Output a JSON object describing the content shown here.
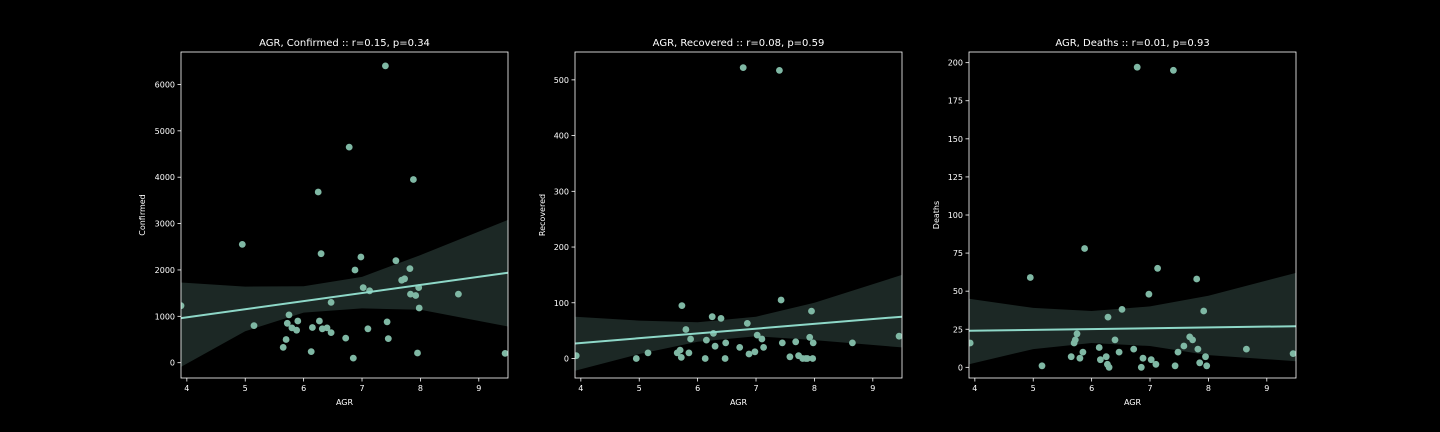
{
  "figure": {
    "background": "#000000",
    "scatter_color": "#7fb8a4",
    "line_color": "#8ed8c8",
    "band_color": "#1c2825"
  },
  "chart_data": [
    {
      "type": "scatter",
      "title": "AGR, Confirmed :: r=0.15, p=0.34",
      "xlabel": "AGR",
      "ylabel": "Confirmed",
      "xlim": [
        3.9,
        9.5
      ],
      "ylim": [
        -330,
        6700
      ],
      "xticks": [
        4,
        5,
        6,
        7,
        8,
        9
      ],
      "yticks": [
        0,
        1000,
        2000,
        3000,
        4000,
        5000,
        6000
      ],
      "points": [
        [
          3.9,
          1230
        ],
        [
          4.95,
          2550
        ],
        [
          5.15,
          800
        ],
        [
          5.65,
          330
        ],
        [
          5.7,
          500
        ],
        [
          5.72,
          850
        ],
        [
          5.75,
          1030
        ],
        [
          5.8,
          750
        ],
        [
          5.88,
          700
        ],
        [
          5.9,
          900
        ],
        [
          6.13,
          240
        ],
        [
          6.15,
          760
        ],
        [
          6.25,
          3680
        ],
        [
          6.27,
          900
        ],
        [
          6.3,
          2350
        ],
        [
          6.32,
          730
        ],
        [
          6.4,
          750
        ],
        [
          6.47,
          650
        ],
        [
          6.47,
          1300
        ],
        [
          6.72,
          530
        ],
        [
          6.78,
          4650
        ],
        [
          6.85,
          100
        ],
        [
          6.88,
          2000
        ],
        [
          6.98,
          2280
        ],
        [
          7.02,
          1620
        ],
        [
          7.1,
          730
        ],
        [
          7.13,
          1550
        ],
        [
          7.4,
          6400
        ],
        [
          7.43,
          880
        ],
        [
          7.45,
          520
        ],
        [
          7.58,
          2200
        ],
        [
          7.68,
          1780
        ],
        [
          7.73,
          1810
        ],
        [
          7.82,
          2030
        ],
        [
          7.83,
          1480
        ],
        [
          7.88,
          3950
        ],
        [
          7.92,
          1450
        ],
        [
          7.95,
          210
        ],
        [
          7.97,
          1620
        ],
        [
          7.98,
          1180
        ],
        [
          8.65,
          1480
        ],
        [
          9.45,
          200
        ]
      ],
      "regression": {
        "x": [
          3.9,
          9.5
        ],
        "y": [
          960,
          1940
        ]
      },
      "ci_band": {
        "x": [
          3.9,
          5.0,
          6.0,
          7.0,
          8.0,
          9.5
        ],
        "upper": [
          1730,
          1640,
          1650,
          1850,
          2320,
          3080
        ],
        "lower": [
          -90,
          680,
          1080,
          1170,
          1140,
          780
        ]
      }
    },
    {
      "type": "scatter",
      "title": "AGR, Recovered :: r=0.08, p=0.59",
      "xlabel": "AGR",
      "ylabel": "Recovered",
      "xlim": [
        3.9,
        9.5
      ],
      "ylim": [
        -35,
        550
      ],
      "xticks": [
        4,
        5,
        6,
        7,
        8,
        9
      ],
      "yticks": [
        0,
        100,
        200,
        300,
        400,
        500
      ],
      "points": [
        [
          3.92,
          5
        ],
        [
          4.95,
          0
        ],
        [
          5.15,
          10
        ],
        [
          5.65,
          10
        ],
        [
          5.7,
          15
        ],
        [
          5.72,
          2
        ],
        [
          5.73,
          95
        ],
        [
          5.8,
          52
        ],
        [
          5.85,
          10
        ],
        [
          5.88,
          35
        ],
        [
          6.13,
          0
        ],
        [
          6.15,
          33
        ],
        [
          6.25,
          75
        ],
        [
          6.27,
          45
        ],
        [
          6.3,
          22
        ],
        [
          6.4,
          72
        ],
        [
          6.47,
          0
        ],
        [
          6.48,
          28
        ],
        [
          6.72,
          20
        ],
        [
          6.78,
          522
        ],
        [
          6.85,
          63
        ],
        [
          6.88,
          8
        ],
        [
          6.98,
          12
        ],
        [
          7.02,
          42
        ],
        [
          7.1,
          35
        ],
        [
          7.13,
          20
        ],
        [
          7.4,
          517
        ],
        [
          7.43,
          105
        ],
        [
          7.45,
          28
        ],
        [
          7.58,
          3
        ],
        [
          7.68,
          30
        ],
        [
          7.73,
          5
        ],
        [
          7.8,
          0
        ],
        [
          7.85,
          0
        ],
        [
          7.88,
          0
        ],
        [
          7.92,
          38
        ],
        [
          7.95,
          85
        ],
        [
          7.97,
          0
        ],
        [
          7.98,
          28
        ],
        [
          8.65,
          28
        ],
        [
          9.45,
          40
        ]
      ],
      "regression": {
        "x": [
          3.9,
          9.5
        ],
        "y": [
          27,
          75
        ]
      },
      "ci_band": {
        "x": [
          3.9,
          5.0,
          6.0,
          7.0,
          8.0,
          9.5
        ],
        "upper": [
          75,
          68,
          65,
          75,
          100,
          150
        ],
        "lower": [
          -22,
          8,
          30,
          40,
          33,
          20
        ]
      }
    },
    {
      "type": "scatter",
      "title": "AGR, Deaths :: r=0.01, p=0.93",
      "xlabel": "AGR",
      "ylabel": "Deaths",
      "xlim": [
        3.9,
        9.5
      ],
      "ylim": [
        -7,
        207
      ],
      "xticks": [
        4,
        5,
        6,
        7,
        8,
        9
      ],
      "yticks": [
        0,
        25,
        50,
        75,
        100,
        125,
        150,
        175,
        200
      ],
      "points": [
        [
          3.92,
          16
        ],
        [
          4.95,
          59
        ],
        [
          5.15,
          1
        ],
        [
          5.65,
          7
        ],
        [
          5.7,
          16
        ],
        [
          5.72,
          18
        ],
        [
          5.75,
          22
        ],
        [
          5.8,
          6
        ],
        [
          5.85,
          10
        ],
        [
          5.88,
          78
        ],
        [
          6.13,
          13
        ],
        [
          6.15,
          5
        ],
        [
          6.25,
          7
        ],
        [
          6.27,
          2
        ],
        [
          6.3,
          0
        ],
        [
          6.28,
          33
        ],
        [
          6.4,
          18
        ],
        [
          6.47,
          10
        ],
        [
          6.52,
          38
        ],
        [
          6.72,
          12
        ],
        [
          6.78,
          197
        ],
        [
          6.85,
          0
        ],
        [
          6.88,
          6
        ],
        [
          6.98,
          48
        ],
        [
          7.02,
          5
        ],
        [
          7.1,
          2
        ],
        [
          7.13,
          65
        ],
        [
          7.4,
          195
        ],
        [
          7.43,
          1
        ],
        [
          7.48,
          10
        ],
        [
          7.58,
          14
        ],
        [
          7.68,
          20
        ],
        [
          7.73,
          18
        ],
        [
          7.8,
          58
        ],
        [
          7.82,
          12
        ],
        [
          7.85,
          3
        ],
        [
          7.92,
          37
        ],
        [
          7.95,
          7
        ],
        [
          7.97,
          1
        ],
        [
          8.65,
          12
        ],
        [
          9.45,
          9
        ]
      ],
      "regression": {
        "x": [
          3.9,
          9.5
        ],
        "y": [
          24,
          27
        ]
      },
      "ci_band": {
        "x": [
          3.9,
          5.0,
          6.0,
          7.0,
          8.0,
          9.5
        ],
        "upper": [
          45,
          39,
          37,
          40,
          47,
          62
        ],
        "lower": [
          2,
          12,
          16,
          14,
          8,
          4
        ]
      }
    }
  ]
}
